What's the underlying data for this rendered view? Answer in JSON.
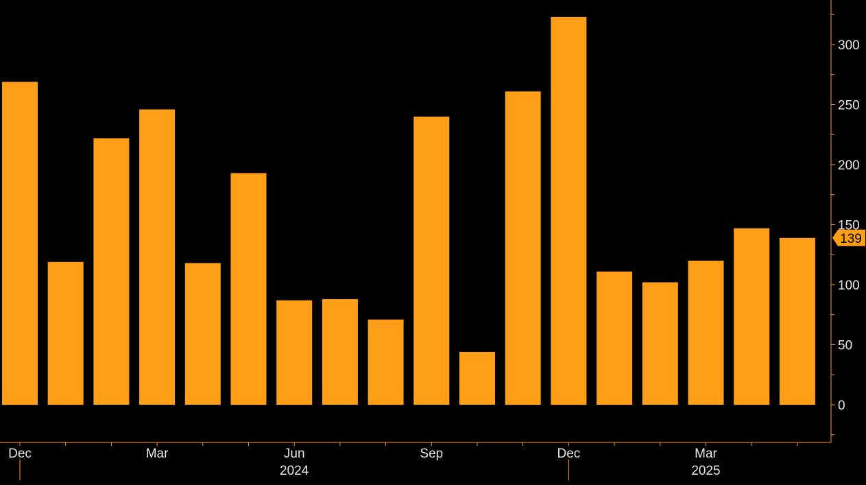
{
  "chart_data": {
    "type": "bar",
    "categories": [
      "2023-12",
      "2024-01",
      "2024-02",
      "2024-03",
      "2024-04",
      "2024-05",
      "2024-06",
      "2024-07",
      "2024-08",
      "2024-09",
      "2024-10",
      "2024-11",
      "2024-12",
      "2025-01",
      "2025-02",
      "2025-03",
      "2025-04",
      "2025-05"
    ],
    "values": [
      269,
      119,
      222,
      246,
      118,
      193,
      87,
      88,
      71,
      240,
      44,
      261,
      323,
      111,
      102,
      120,
      147,
      139
    ],
    "title": "",
    "xlabel": "",
    "ylabel": "",
    "ylim": [
      -25,
      335
    ],
    "y_ticks": [
      0,
      50,
      100,
      150,
      200,
      250,
      300
    ],
    "x_tick_labels": [
      {
        "label": "Dec",
        "category": "2023-12"
      },
      {
        "label": "Mar",
        "category": "2024-03"
      },
      {
        "label": "Jun",
        "category": "2024-06"
      },
      {
        "label": "Sep",
        "category": "2024-09"
      },
      {
        "label": "Dec",
        "category": "2024-12"
      },
      {
        "label": "Mar",
        "category": "2025-03"
      }
    ],
    "year_labels": [
      {
        "label": "2024",
        "category": "2024-06"
      },
      {
        "label": "2025",
        "category": "2025-03"
      }
    ],
    "last_value_label": "139",
    "y_axis_position": "right",
    "grid": false,
    "legend": "none",
    "colors": {
      "background": "#000000",
      "bar": "#FF9F17",
      "axis": "#FF9F17",
      "text": "#E8E8E8",
      "last_value_text": "#000000"
    }
  }
}
